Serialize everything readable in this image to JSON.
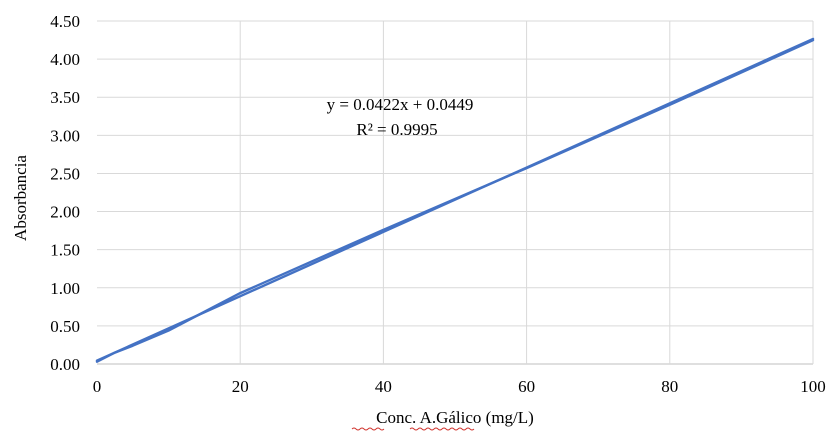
{
  "chart_data": {
    "type": "line",
    "title": "",
    "xlabel": "Conc. A.Gálico (mg/L)",
    "ylabel": "Absorbancia",
    "xlim": [
      0,
      100
    ],
    "ylim": [
      0,
      4.5
    ],
    "x_ticks": [
      "0",
      "20",
      "40",
      "60",
      "80",
      "100"
    ],
    "y_ticks": [
      "0.00",
      "0.50",
      "1.00",
      "1.50",
      "2.00",
      "2.50",
      "3.00",
      "3.50",
      "4.00",
      "4.50"
    ],
    "grid": true,
    "legend": "none",
    "series": [
      {
        "color": "#4472C4",
        "x": [
          0,
          2.5,
          5,
          10,
          20,
          40,
          60,
          80,
          100
        ],
        "y": [
          0.03,
          0.15,
          0.24,
          0.44,
          0.93,
          1.76,
          2.57,
          3.4,
          4.25
        ]
      }
    ],
    "trendline": {
      "color": "#4472C4",
      "slope": 0.0422,
      "intercept": 0.0449,
      "equation": "y = 0.0422x + 0.0449",
      "r2": "R² = 0.9995"
    }
  }
}
